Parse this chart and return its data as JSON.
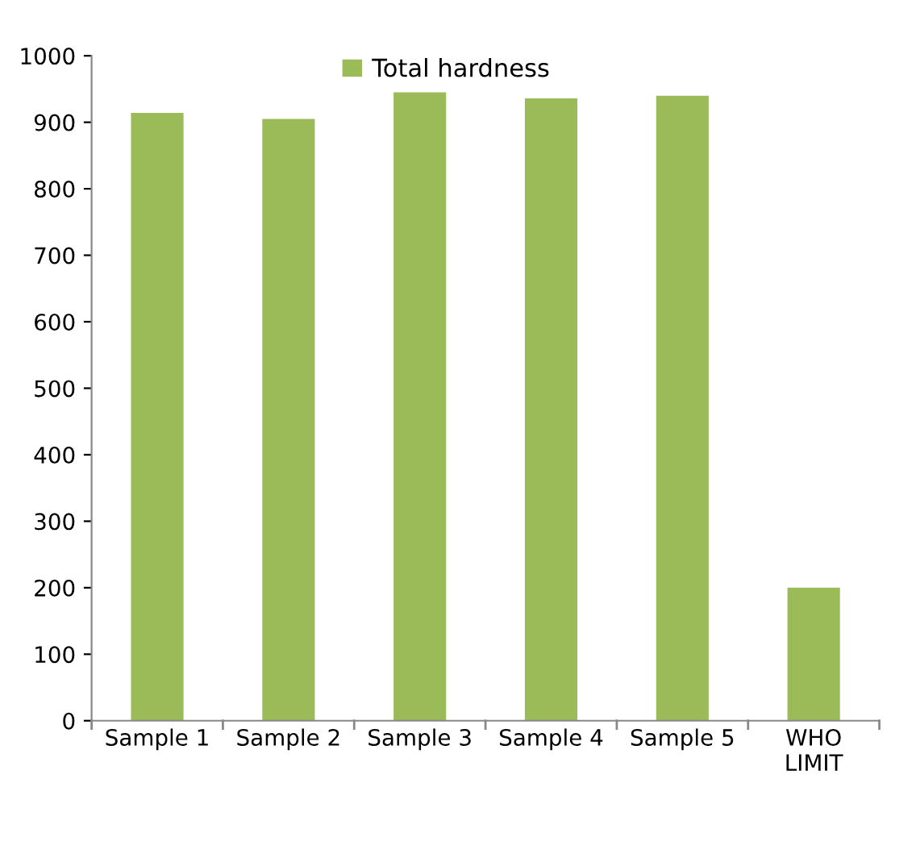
{
  "chart_data": {
    "type": "bar",
    "categories": [
      "Sample 1",
      "Sample 2",
      "Sample 3",
      "Sample 4",
      "Sample 5",
      "WHO\nLIMIT"
    ],
    "series": [
      {
        "name": "Total hardness",
        "color": "#9bbb59",
        "values": [
          914,
          905,
          945,
          936,
          940,
          200
        ]
      }
    ],
    "ylim": [
      0,
      1000
    ],
    "yticks": [
      0,
      100,
      200,
      300,
      400,
      500,
      600,
      700,
      800,
      900,
      1000
    ],
    "grid": false,
    "legend": "top"
  }
}
